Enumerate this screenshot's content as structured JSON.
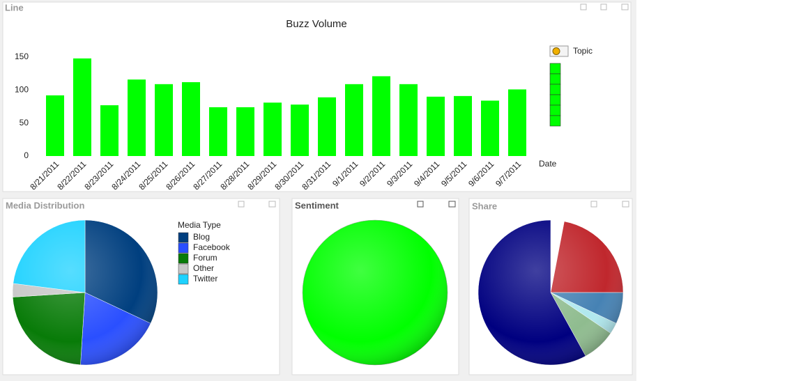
{
  "chart_data": [
    {
      "type": "bar",
      "caption": "Line",
      "title": "Buzz Volume",
      "x_label": "Date",
      "legend_title": "Topic",
      "categories": [
        "8/21/2011",
        "8/22/2011",
        "8/23/2011",
        "8/24/2011",
        "8/25/2011",
        "8/26/2011",
        "8/27/2011",
        "8/28/2011",
        "8/29/2011",
        "8/30/2011",
        "8/31/2011",
        "9/1/2011",
        "9/2/2011",
        "9/3/2011",
        "9/4/2011",
        "9/5/2011",
        "9/6/2011",
        "9/7/2011"
      ],
      "values": [
        92,
        148,
        77,
        116,
        109,
        112,
        74,
        74,
        81,
        78,
        89,
        109,
        121,
        109,
        90,
        91,
        84,
        101
      ],
      "color": "#00ff00",
      "ylim": [
        0,
        150
      ],
      "yticks": [
        0,
        50,
        100,
        150
      ]
    },
    {
      "type": "pie",
      "caption": "Media Distribution",
      "legend_title": "Media Type",
      "categories": [
        "Blog",
        "Facebook",
        "Forum",
        "Other",
        "Twitter"
      ],
      "values": [
        32,
        19,
        23,
        3,
        23
      ],
      "colors": [
        "#003f7f",
        "#2a4fff",
        "#087b08",
        "#c8c8c8",
        "#1ed2ff"
      ],
      "legend": true
    },
    {
      "type": "pie",
      "caption": "Sentiment",
      "categories": [
        null
      ],
      "values": [
        100
      ],
      "colors": [
        "#00ff00"
      ],
      "legend": false
    },
    {
      "type": "pie",
      "caption": "Share",
      "categories": [
        null,
        null,
        null,
        null,
        null,
        null
      ],
      "values": [
        3,
        22,
        7,
        2.5,
        7.5,
        58
      ],
      "colors": [
        "#ffffff",
        "#c0272d",
        "#4682b4",
        "#b0e8ee",
        "#8fbc8f",
        "#000080"
      ],
      "legend": false
    }
  ]
}
